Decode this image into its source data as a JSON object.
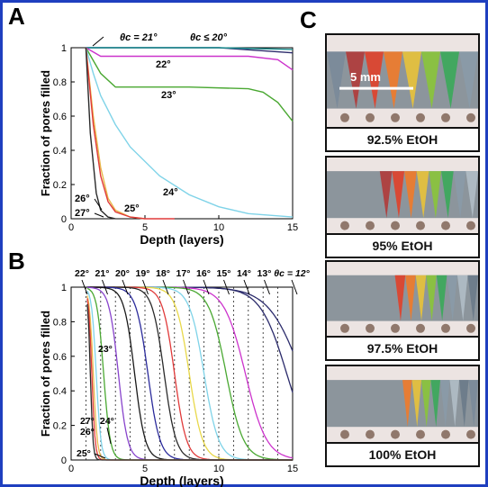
{
  "panel_labels": {
    "a": "A",
    "b": "B",
    "c": "C"
  },
  "chart_data": [
    {
      "type": "line",
      "panel": "A",
      "xlabel": "Depth (layers)",
      "ylabel": "Fraction of pores filled",
      "xlim": [
        0,
        15
      ],
      "ylim": [
        0,
        1
      ],
      "xticks": [
        0,
        5,
        10,
        15
      ],
      "yticks": [
        0,
        0.2,
        0.4,
        0.6,
        0.8,
        1
      ],
      "annotations": [
        "θc = 21°",
        "θc ≤ 20°",
        "22°",
        "23°",
        "24°",
        "25°",
        "26°",
        "27°"
      ],
      "series": [
        {
          "name": "θc ≤ 20°",
          "color": "#2b2b6b",
          "x": [
            1,
            3,
            6,
            10,
            15
          ],
          "y": [
            1,
            1,
            1,
            1,
            0.97
          ]
        },
        {
          "name": "θc = 21°",
          "color": "#1a8f8f",
          "x": [
            1,
            3,
            6,
            10,
            15
          ],
          "y": [
            1,
            1,
            1,
            1,
            0.99
          ]
        },
        {
          "name": "22°",
          "color": "#cc33cc",
          "x": [
            1,
            2,
            4,
            8,
            12,
            14,
            15
          ],
          "y": [
            1,
            0.95,
            0.95,
            0.95,
            0.95,
            0.93,
            0.87
          ]
        },
        {
          "name": "23°",
          "color": "#4aa832",
          "x": [
            1,
            2,
            3,
            5,
            8,
            12,
            13,
            14,
            15
          ],
          "y": [
            1,
            0.85,
            0.77,
            0.77,
            0.77,
            0.76,
            0.74,
            0.68,
            0.57
          ]
        },
        {
          "name": "24°",
          "color": "#7fd3e8",
          "x": [
            1,
            1.5,
            2,
            3,
            4,
            6,
            8,
            10,
            12,
            15
          ],
          "y": [
            1,
            0.85,
            0.72,
            0.55,
            0.42,
            0.25,
            0.14,
            0.07,
            0.03,
            0.01
          ]
        },
        {
          "name": "25°",
          "color": "#e8b84a",
          "x": [
            1,
            1.5,
            2,
            2.5,
            3,
            4,
            5
          ],
          "y": [
            1,
            0.6,
            0.3,
            0.12,
            0.05,
            0.01,
            0
          ]
        },
        {
          "name": "26°",
          "color": "#e03a3a",
          "x": [
            1,
            1.5,
            2,
            2.5,
            3,
            4,
            5,
            7
          ],
          "y": [
            1,
            0.55,
            0.25,
            0.1,
            0.04,
            0.01,
            0,
            0
          ]
        },
        {
          "name": "27°",
          "color": "#2a2a2a",
          "x": [
            1,
            1.3,
            1.7,
            2,
            2.5,
            3
          ],
          "y": [
            1,
            0.5,
            0.15,
            0.05,
            0.01,
            0
          ]
        }
      ]
    },
    {
      "type": "line",
      "panel": "B",
      "xlabel": "Depth (layers)",
      "ylabel": "Fraction of pores filled",
      "xlim": [
        0,
        15
      ],
      "ylim": [
        0,
        1
      ],
      "xticks": [
        0,
        5,
        10,
        15
      ],
      "yticks": [
        0,
        0.2,
        0.4,
        0.6,
        0.8,
        1
      ],
      "top_labels": [
        "22°",
        "21°",
        "20°",
        "19°",
        "18°",
        "17°",
        "16°",
        "15°",
        "14°",
        "13°",
        "θc = 12°"
      ],
      "inner_labels": [
        "23°",
        "27°",
        "24°",
        "26°",
        "25°"
      ],
      "dashed_x": [
        1,
        2,
        3,
        4,
        5,
        6,
        7,
        8,
        9,
        10,
        11,
        12,
        13,
        14
      ],
      "series": [
        {
          "name": "12°",
          "color": "#2b2b6b",
          "center": 15.6,
          "width": 2.5
        },
        {
          "name": "13°",
          "color": "#2b2b6b",
          "center": 14.6,
          "width": 2.0
        },
        {
          "name": "14°",
          "color": "#cc33cc",
          "center": 11.8,
          "width": 1.6
        },
        {
          "name": "15°",
          "color": "#4aa832",
          "center": 10.5,
          "width": 1.3
        },
        {
          "name": "16°",
          "color": "#7fd3e8",
          "center": 9.0,
          "width": 1.1
        },
        {
          "name": "17°",
          "color": "#e8d84a",
          "center": 8.0,
          "width": 1.0
        },
        {
          "name": "18°",
          "color": "#e03a3a",
          "center": 7.0,
          "width": 0.9
        },
        {
          "name": "19°",
          "color": "#2a2a2a",
          "center": 6.3,
          "width": 0.9
        },
        {
          "name": "20°",
          "color": "#2b2b9b",
          "center": 5.2,
          "width": 0.9
        },
        {
          "name": "21°",
          "color": "#1a1a1a",
          "center": 4.3,
          "width": 0.8
        },
        {
          "name": "22°",
          "color": "#8844cc",
          "center": 3.2,
          "width": 0.7
        },
        {
          "name": "23°",
          "color": "#4aa832",
          "center": 2.2,
          "width": 0.5
        },
        {
          "name": "24°",
          "color": "#7fd3e8",
          "center": 1.7,
          "width": 0.35
        },
        {
          "name": "25°",
          "color": "#e8b84a",
          "center": 1.5,
          "width": 0.3
        },
        {
          "name": "26°",
          "color": "#e03a3a",
          "center": 1.4,
          "width": 0.25
        },
        {
          "name": "27°",
          "color": "#2a2a2a",
          "center": 1.3,
          "width": 0.2
        }
      ]
    }
  ],
  "panel_c": {
    "scale_bar": "5 mm",
    "photos": [
      {
        "caption": "92.5% EtOH",
        "ink_start": 0.0
      },
      {
        "caption": "95% EtOH",
        "ink_start": 0.35
      },
      {
        "caption": "97.5% EtOH",
        "ink_start": 0.45
      },
      {
        "caption": "100% EtOH",
        "ink_start": 0.5
      }
    ]
  }
}
